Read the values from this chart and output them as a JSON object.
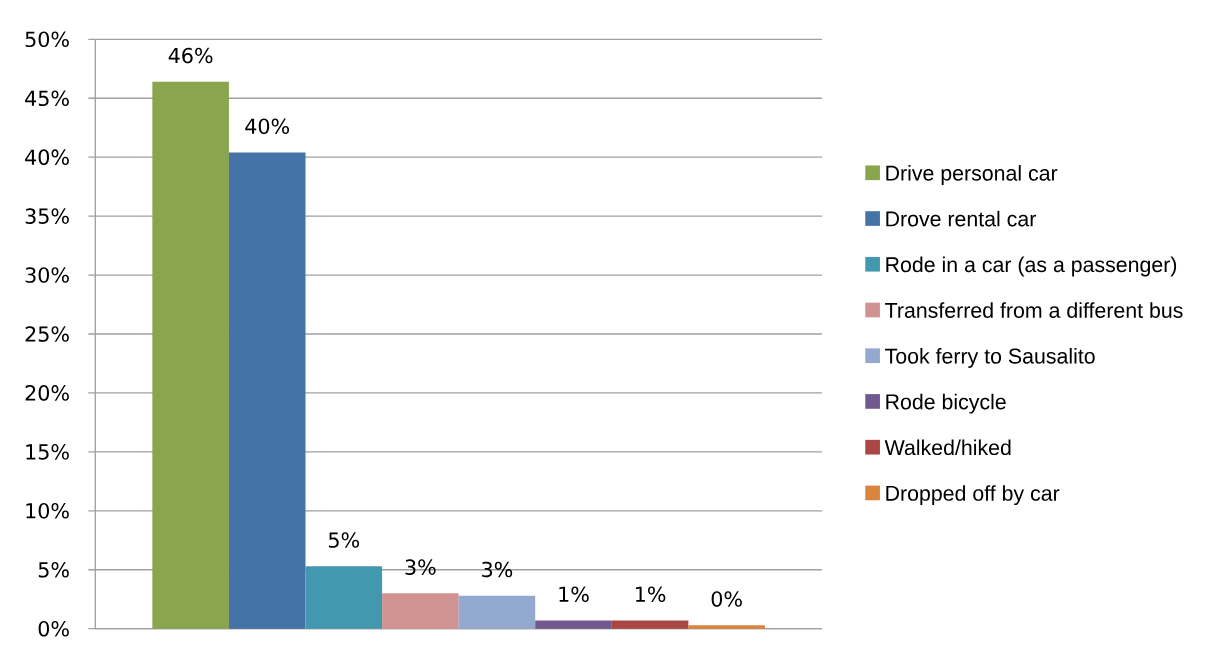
{
  "chart_data": {
    "type": "bar",
    "categories": [
      null
    ],
    "series": [
      {
        "name": "Drive personal car",
        "color": "#89a54e",
        "values": [
          46.4
        ],
        "value_labels": [
          "46%"
        ]
      },
      {
        "name": "Drove rental car",
        "color": "#4572a7",
        "values": [
          40.4
        ],
        "value_labels": [
          "40%"
        ]
      },
      {
        "name": "Rode in a car (as a passenger)",
        "color": "#4198af",
        "values": [
          5.3
        ],
        "value_labels": [
          "5%"
        ]
      },
      {
        "name": "Transferred from a different bus",
        "color": "#d19392",
        "values": [
          3.0
        ],
        "value_labels": [
          "3%"
        ]
      },
      {
        "name": "Took ferry to Sausalito",
        "color": "#93a9cf",
        "values": [
          2.8
        ],
        "value_labels": [
          "3%"
        ]
      },
      {
        "name": "Rode bicycle",
        "color": "#71588f",
        "values": [
          0.7
        ],
        "value_labels": [
          "1%"
        ]
      },
      {
        "name": "Walked/hiked",
        "color": "#aa4643",
        "values": [
          0.7
        ],
        "value_labels": [
          "1%"
        ]
      },
      {
        "name": "Dropped off by car",
        "color": "#db843d",
        "values": [
          0.3
        ],
        "value_labels": [
          "0%"
        ]
      }
    ],
    "ylim": [
      0,
      50
    ],
    "yticks": [
      {
        "value": 0,
        "label": "0%"
      },
      {
        "value": 5,
        "label": "5%"
      },
      {
        "value": 10,
        "label": "10%"
      },
      {
        "value": 15,
        "label": "15%"
      },
      {
        "value": 20,
        "label": "20%"
      },
      {
        "value": 25,
        "label": "25%"
      },
      {
        "value": 30,
        "label": "30%"
      },
      {
        "value": 35,
        "label": "35%"
      },
      {
        "value": 40,
        "label": "40%"
      },
      {
        "value": 45,
        "label": "45%"
      },
      {
        "value": 50,
        "label": "50%"
      }
    ],
    "grid": "y",
    "legend": "right"
  }
}
